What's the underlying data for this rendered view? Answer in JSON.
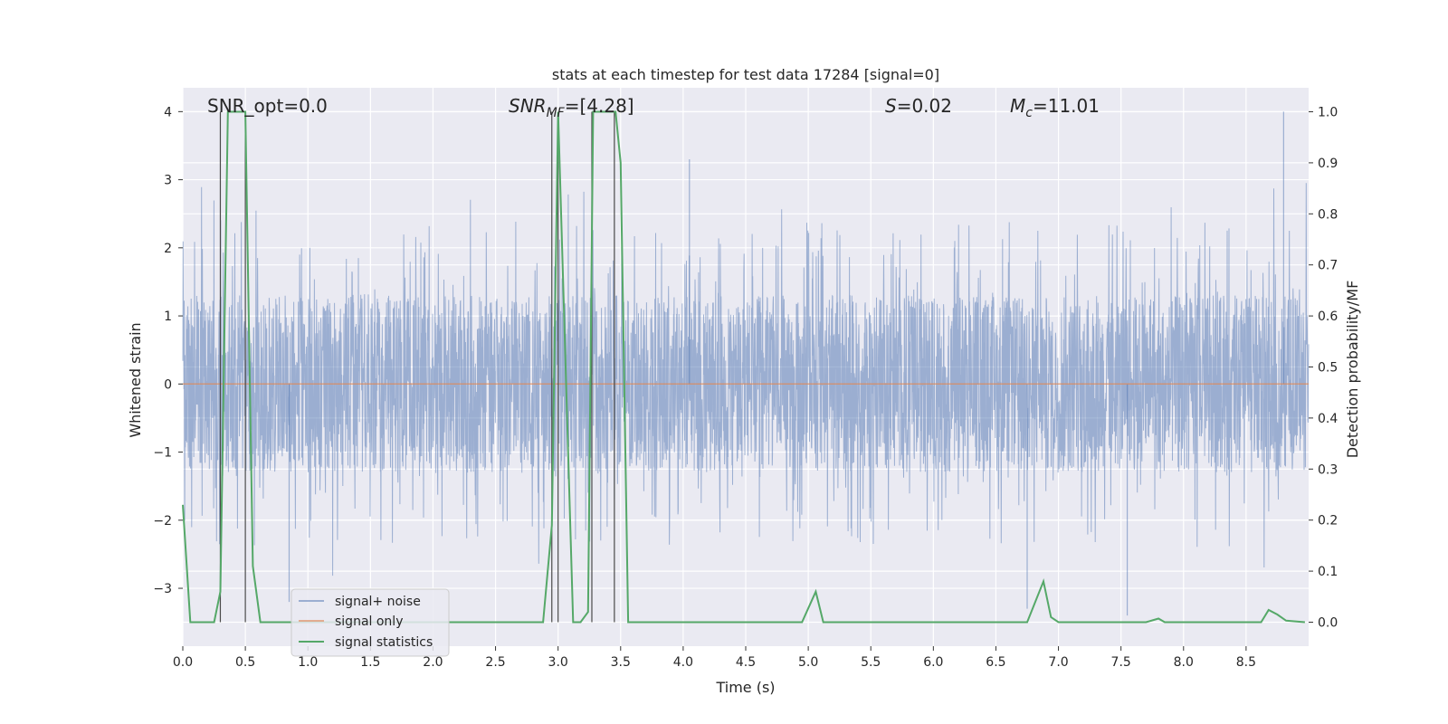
{
  "chart_data": {
    "type": "line",
    "title": "stats at each timestep for test data 17284 [signal=0]",
    "xlabel": "Time (s)",
    "ylabel": "Whitened strain",
    "y2label": "Detection probability/MF",
    "xlim": [
      0,
      9.0
    ],
    "ylim": [
      -3.85,
      4.35
    ],
    "y2lim": [
      -0.047,
      1.047
    ],
    "xticks": [
      "0.0",
      "0.5",
      "1.0",
      "1.5",
      "2.0",
      "2.5",
      "3.0",
      "3.5",
      "4.0",
      "4.5",
      "5.0",
      "5.5",
      "6.0",
      "6.5",
      "7.0",
      "7.5",
      "8.0",
      "8.5"
    ],
    "xtick_values": [
      0,
      0.5,
      1.0,
      1.5,
      2.0,
      2.5,
      3.0,
      3.5,
      4.0,
      4.5,
      5.0,
      5.5,
      6.0,
      6.5,
      7.0,
      7.5,
      8.0,
      8.5
    ],
    "yticks": [
      "−3",
      "−2",
      "−1",
      "0",
      "1",
      "2",
      "3",
      "4"
    ],
    "ytick_values": [
      -3,
      -2,
      -1,
      0,
      1,
      2,
      3,
      4
    ],
    "y2ticks": [
      "0.0",
      "0.1",
      "0.2",
      "0.3",
      "0.4",
      "0.5",
      "0.6",
      "0.7",
      "0.8",
      "0.9",
      "1.0"
    ],
    "y2tick_values": [
      0,
      0.1,
      0.2,
      0.3,
      0.4,
      0.5,
      0.6,
      0.7,
      0.8,
      0.9,
      1.0
    ],
    "grid": true,
    "legend_position": "lower-left",
    "annotations": {
      "snr_opt": "SNR_opt=0.0",
      "snr_mf_main": "SNR",
      "snr_mf_sub": "MF",
      "snr_mf_rest": "=[4.28]",
      "s_main": "S",
      "s_rest": "=0.02",
      "mc_main": "M",
      "mc_sub": "c",
      "mc_rest": "=11.01"
    },
    "series": [
      {
        "name": "signal+ noise",
        "color": "#4c72b0",
        "kind": "noise",
        "range": [
          -1.3,
          1.3
        ],
        "tail_range": [
          -3.6,
          4.0
        ],
        "notable_peaks": [
          {
            "x": 7.55,
            "y": -3.4
          },
          {
            "x": 8.8,
            "y": 4.0
          },
          {
            "x": 0.85,
            "y": -3.2
          },
          {
            "x": 4.05,
            "y": 3.3
          },
          {
            "x": 6.75,
            "y": -3.3
          }
        ]
      },
      {
        "name": "signal only",
        "color": "#dd8452",
        "x": [
          0,
          9.0
        ],
        "y": [
          0,
          0
        ]
      },
      {
        "name": "signal statistics",
        "color": "#55a868",
        "axis": "right",
        "x": [
          0,
          0.06,
          0.12,
          0.25,
          0.3,
          0.36,
          0.48,
          0.5,
          0.56,
          0.62,
          1.0,
          2.0,
          2.88,
          2.95,
          3.0,
          3.12,
          3.18,
          3.24,
          3.28,
          3.32,
          3.4,
          3.46,
          3.5,
          3.56,
          3.62,
          4.0,
          4.95,
          5.06,
          5.12,
          6.0,
          6.75,
          6.88,
          6.94,
          7.0,
          7.7,
          7.8,
          7.85,
          7.95,
          8.5,
          8.62,
          8.68,
          8.75,
          8.82,
          8.97
        ],
        "y": [
          0.23,
          0.0,
          0.0,
          0.0,
          0.06,
          1.0,
          1.0,
          1.0,
          0.11,
          0.0,
          0.0,
          0.0,
          0.0,
          0.19,
          1.0,
          0.0,
          0.0,
          0.02,
          1.0,
          1.0,
          1.0,
          1.0,
          0.9,
          0.0,
          0.0,
          0.0,
          0.0,
          0.06,
          0.0,
          0.0,
          0.0,
          0.08,
          0.01,
          0.0,
          0.0,
          0.007,
          0.0,
          0.0,
          0.0,
          0.0,
          0.024,
          0.015,
          0.003,
          0.0
        ]
      }
    ],
    "vertical_lines": [
      0.3,
      0.5,
      2.95,
      3.0,
      3.27,
      3.45
    ]
  }
}
